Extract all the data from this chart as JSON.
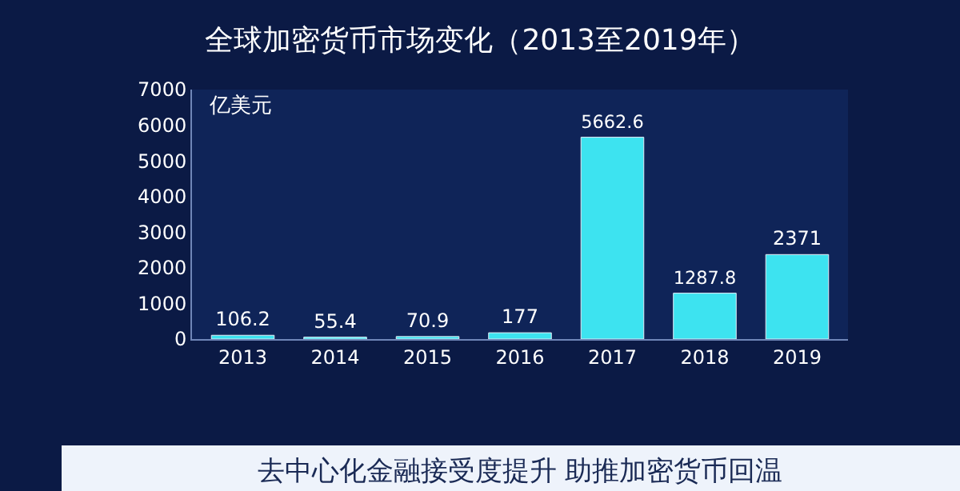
{
  "chart_data": {
    "type": "bar",
    "title": "全球加密货币市场变化（2013至2019年）",
    "ylabel": "亿美元",
    "categories": [
      "2013",
      "2014",
      "2015",
      "2016",
      "2017",
      "2018",
      "2019"
    ],
    "values": [
      106.2,
      55.4,
      70.9,
      177,
      5662.6,
      1287.8,
      2371
    ],
    "color": "#3de3f0",
    "data_labels": true,
    "grid": false,
    "legend": false,
    "ylim": [
      0,
      7000
    ],
    "yticks": [
      0,
      1000,
      2000,
      3000,
      4000,
      5000,
      6000,
      7000
    ],
    "annotations": [
      "去中心化金融接受度提升 助推加密货币回温"
    ]
  }
}
